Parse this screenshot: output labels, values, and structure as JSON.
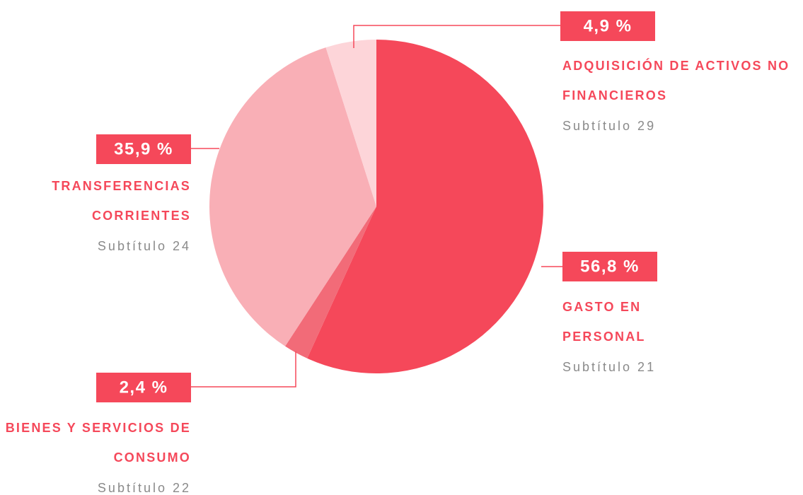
{
  "chart_data": {
    "type": "pie",
    "categories": [
      "GASTO EN PERSONAL",
      "BIENES Y SERVICIOS DE CONSUMO",
      "TRANSFERENCIAS CORRIENTES",
      "ADQUISICIÓN DE ACTIVOS NO FINANCIEROS"
    ],
    "subtitles": [
      "Subtítulo 21",
      "Subtítulo 22",
      "Subtítulo 24",
      "Subtítulo 29"
    ],
    "values": [
      56.8,
      2.4,
      35.9,
      4.9
    ],
    "value_labels": [
      "56,8 %",
      "2,4 %",
      "35,9 %",
      "4,9 %"
    ],
    "colors": [
      "#f5485a",
      "#f26b78",
      "#f9afb6",
      "#fdd5d9"
    ],
    "label_color": "#f5485a"
  }
}
